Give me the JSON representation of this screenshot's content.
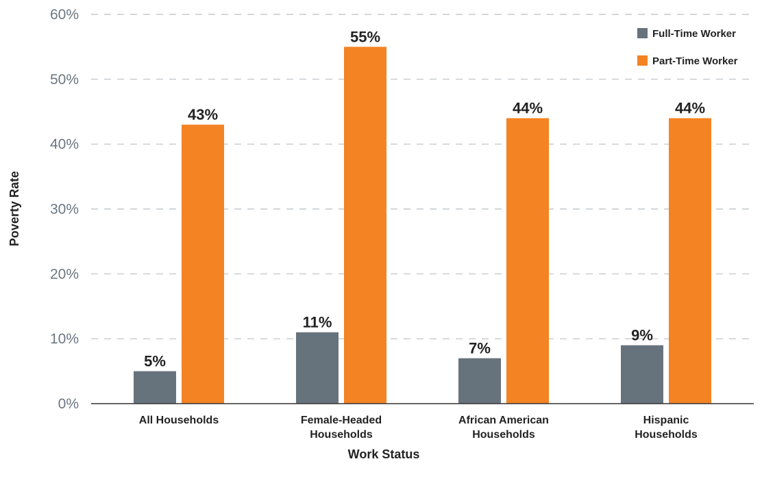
{
  "chart_data": {
    "type": "bar",
    "title": "",
    "xlabel": "Work Status",
    "ylabel": "Poverty Rate",
    "ylim": [
      0,
      60
    ],
    "yticks": [
      0,
      10,
      20,
      30,
      40,
      50,
      60
    ],
    "ytick_suffix": "%",
    "grid": true,
    "legend_position": "top-right",
    "categories": [
      [
        "All Households"
      ],
      [
        "Female-Headed",
        "Households"
      ],
      [
        "African American",
        "Households"
      ],
      [
        "Hispanic",
        "Households"
      ]
    ],
    "series": [
      {
        "name": "Full-Time Worker",
        "color": "#67737c",
        "values": [
          5,
          11,
          7,
          9
        ],
        "labels": [
          "5%",
          "11%",
          "7%",
          "9%"
        ]
      },
      {
        "name": "Part-Time Worker",
        "color": "#f48323",
        "values": [
          43,
          55,
          44,
          44
        ],
        "labels": [
          "43%",
          "55%",
          "44%",
          "44%"
        ]
      }
    ]
  }
}
